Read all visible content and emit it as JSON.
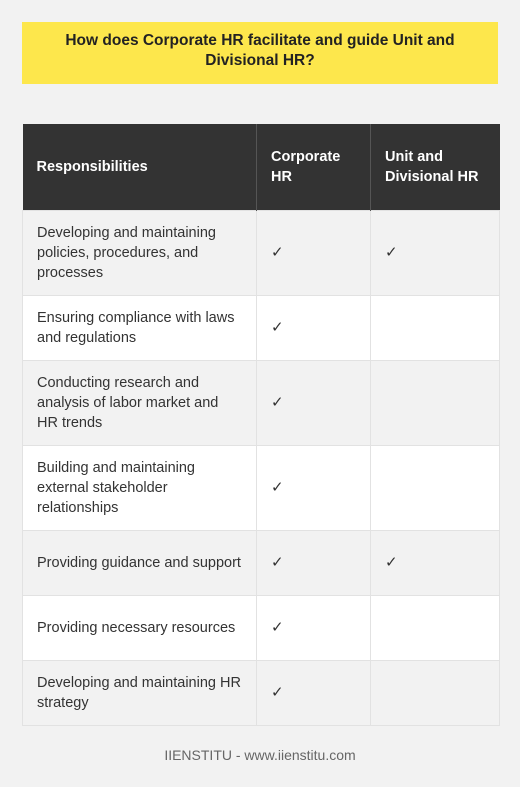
{
  "title": "How does Corporate HR facilitate and guide Unit and Divisional HR?",
  "table": {
    "headers": {
      "responsibilities": "Responsibilities",
      "corporate": "Corporate HR",
      "unit": "Unit and Divisional HR"
    },
    "rows": [
      {
        "responsibility": "Developing and maintaining policies, procedures, and processes",
        "corporate": "✓",
        "unit": "✓"
      },
      {
        "responsibility": "Ensuring compliance with laws and regulations",
        "corporate": "✓",
        "unit": ""
      },
      {
        "responsibility": "Conducting research and analysis of labor market and HR trends",
        "corporate": "✓",
        "unit": ""
      },
      {
        "responsibility": "Building and maintaining external stakeholder relationships",
        "corporate": "✓",
        "unit": ""
      },
      {
        "responsibility": "Providing guidance and support",
        "corporate": "✓",
        "unit": "✓"
      },
      {
        "responsibility": "Providing necessary resources",
        "corporate": "✓",
        "unit": ""
      },
      {
        "responsibility": "Developing and maintaining HR strategy",
        "corporate": "✓",
        "unit": ""
      }
    ]
  },
  "footer": "IIENSTITU - www.iienstitu.com",
  "colors": {
    "title_background": "#fde74c",
    "header_background": "#333333",
    "page_background": "#f2f2f2"
  }
}
